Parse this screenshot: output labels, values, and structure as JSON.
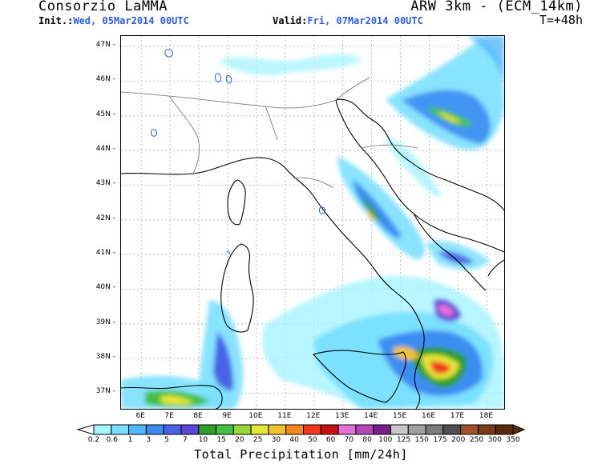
{
  "header": {
    "organization": "Consorzio LaMMA",
    "model": "ARW 3km - (ECM_14km)",
    "init_label": "Init.:",
    "init_value": "Wed, 05Mar2014 00UTC",
    "valid_label": "Valid:",
    "valid_value": "Fri, 07Mar2014 00UTC",
    "forecast_step": "T=+48h"
  },
  "map": {
    "lat_labels": [
      "47N",
      "46N",
      "45N",
      "44N",
      "43N",
      "42N",
      "41N",
      "40N",
      "39N",
      "38N",
      "37N"
    ],
    "lon_labels": [
      "6E",
      "7E",
      "8E",
      "9E",
      "10E",
      "11E",
      "12E",
      "13E",
      "14E",
      "15E",
      "16E",
      "17E",
      "18E"
    ],
    "lat_values": [
      47,
      46,
      45,
      44,
      43,
      42,
      41,
      40,
      39,
      38,
      37
    ],
    "lon_values": [
      6,
      7,
      8,
      9,
      10,
      11,
      12,
      13,
      14,
      15,
      16,
      17,
      18
    ],
    "lon_range": [
      5.3,
      18.6
    ],
    "lat_range": [
      36.55,
      47.3
    ]
  },
  "legend": {
    "title": "Total Precipitation [mm/24h]",
    "values": [
      "0.2",
      "0.6",
      "1",
      "3",
      "5",
      "7",
      "10",
      "15",
      "20",
      "25",
      "30",
      "40",
      "50",
      "60",
      "70",
      "80",
      "100",
      "125",
      "150",
      "175",
      "200",
      "250",
      "300",
      "350"
    ],
    "colors": [
      "#a6f4ff",
      "#7be0ff",
      "#52b8ff",
      "#3e8cf2",
      "#4a63e6",
      "#5b45d8",
      "#2c9e2c",
      "#45c045",
      "#9ad83a",
      "#e6e63a",
      "#f2c22e",
      "#f28a1e",
      "#f03a1e",
      "#c80f14",
      "#e66fd9",
      "#b347b8",
      "#7a1f8a",
      "#c8c8c8",
      "#a0a0a0",
      "#7a7a7a",
      "#505050",
      "#a0522d",
      "#7a3b18",
      "#5a2a10"
    ]
  }
}
